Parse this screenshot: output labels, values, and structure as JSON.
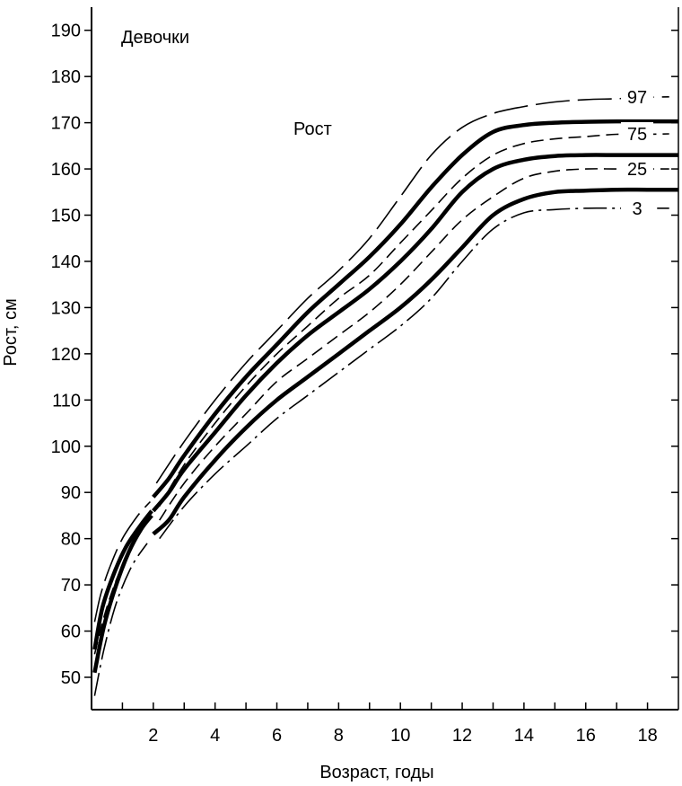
{
  "chart_data": {
    "type": "line",
    "title": "Девочки",
    "subtitle": "Рост",
    "xlabel": "Возраст, годы",
    "ylabel": "Рост, см",
    "xlim": [
      0,
      19
    ],
    "ylim": [
      43,
      195
    ],
    "x_ticks": [
      2,
      4,
      6,
      8,
      10,
      12,
      14,
      16,
      18
    ],
    "y_ticks": [
      50,
      60,
      70,
      80,
      90,
      100,
      110,
      120,
      130,
      140,
      150,
      160,
      170,
      180,
      190
    ],
    "grid": false,
    "colors": {
      "line": "#000000",
      "background": "#ffffff"
    },
    "series": [
      {
        "name": "97",
        "style": "dash-long",
        "segments": [
          {
            "x": [
              0.1,
              0.3,
              0.6,
              1.0,
              1.5,
              1.9
            ],
            "y": [
              62,
              68,
              74,
              80,
              85,
              88
            ]
          },
          {
            "x": [
              2.1,
              3,
              4,
              5,
              6,
              7,
              8,
              9,
              10,
              11,
              12,
              13,
              14,
              15,
              16,
              17,
              18,
              18.7
            ],
            "y": [
              92,
              101,
              110,
              118,
              125,
              132,
              138,
              145,
              154,
              163,
              169,
              172,
              173.5,
              174.5,
              175,
              175.2,
              175.5,
              175.6
            ]
          }
        ]
      },
      {
        "name": "75",
        "style": "dashed",
        "segments": [
          {
            "x": [
              0.1,
              0.4,
              0.8,
              1.3,
              1.8
            ],
            "y": [
              55,
              63,
              71,
              78,
              84
            ]
          },
          {
            "x": [
              2.2,
              3,
              4,
              5,
              6,
              7,
              8,
              9,
              10,
              11,
              12,
              13,
              14,
              15,
              16,
              17,
              18,
              18.7
            ],
            "y": [
              87,
              96,
              105,
              113,
              120,
              126,
              132,
              137,
              144,
              151,
              158,
              163,
              165.5,
              166.5,
              167,
              167.5,
              167.5,
              167.6
            ]
          }
        ]
      },
      {
        "name": "25",
        "style": "dashed",
        "segments": [
          {
            "x": [
              2.2,
              3,
              4,
              5,
              6,
              7,
              8,
              9,
              10,
              11,
              12,
              13,
              14,
              15,
              16,
              17,
              18,
              18.7
            ],
            "y": [
              84,
              92,
              100,
              107,
              114,
              119,
              124,
              129,
              135,
              142,
              149,
              154,
              158,
              159.5,
              160,
              160,
              160,
              160
            ]
          }
        ]
      },
      {
        "name": "3",
        "style": "dash-dot",
        "segments": [
          {
            "x": [
              0.1,
              0.4,
              0.8,
              1.3,
              1.8
            ],
            "y": [
              46,
              56,
              66,
              74,
              79
            ]
          },
          {
            "x": [
              2.2,
              3,
              4,
              5,
              6,
              7,
              8,
              9,
              10,
              11,
              12,
              13,
              14,
              15,
              16,
              17,
              18,
              18.7
            ],
            "y": [
              80,
              87,
              94,
              100,
              106,
              111,
              116,
              121,
              126,
              132,
              140,
              147,
              150.5,
              151.2,
              151.5,
              151.5,
              151.5,
              151.5
            ]
          }
        ]
      },
      {
        "name": "",
        "style": "solid-thick",
        "segments": [
          {
            "x": [
              0.1,
              0.35,
              0.7,
              1.1,
              1.6,
              1.95
            ],
            "y": [
              56,
              65,
              72,
              78,
              83,
              86
            ]
          },
          {
            "x": [
              2.0,
              2.5,
              3,
              4,
              5,
              6,
              7,
              8,
              9,
              10,
              11,
              12,
              13,
              14,
              15,
              16,
              17,
              18,
              19
            ],
            "y": [
              89,
              93,
              98,
              107,
              115,
              122,
              129,
              135,
              141,
              148,
              156,
              163,
              168,
              169.5,
              170,
              170.2,
              170.3,
              170.3,
              170.3
            ]
          }
        ]
      },
      {
        "name": "",
        "style": "solid-thick",
        "segments": [
          {
            "x": [
              0.1,
              0.4,
              0.8,
              1.2,
              1.6,
              1.95
            ],
            "y": [
              51,
              61,
              70,
              77,
              82,
              85
            ]
          },
          {
            "x": [
              2.0,
              2.5,
              3,
              4,
              5,
              6,
              7,
              8,
              9,
              10,
              11,
              12,
              13,
              14,
              15,
              16,
              17,
              18,
              19
            ],
            "y": [
              86,
              90,
              95,
              103,
              111,
              118,
              124,
              129,
              134,
              140,
              147,
              155,
              160,
              162,
              162.8,
              163,
              163,
              163,
              163
            ]
          }
        ]
      },
      {
        "name": "",
        "style": "solid-thick",
        "segments": [
          {
            "x": [
              2.0,
              2.5,
              3,
              4,
              5,
              6,
              7,
              8,
              9,
              10,
              11,
              12,
              13,
              14,
              15,
              16,
              17,
              18,
              19
            ],
            "y": [
              81,
              84,
              89,
              97,
              104,
              110,
              115,
              120,
              125,
              130,
              136,
              143,
              150,
              153.5,
              155,
              155.3,
              155.5,
              155.5,
              155.5
            ]
          }
        ]
      }
    ]
  }
}
